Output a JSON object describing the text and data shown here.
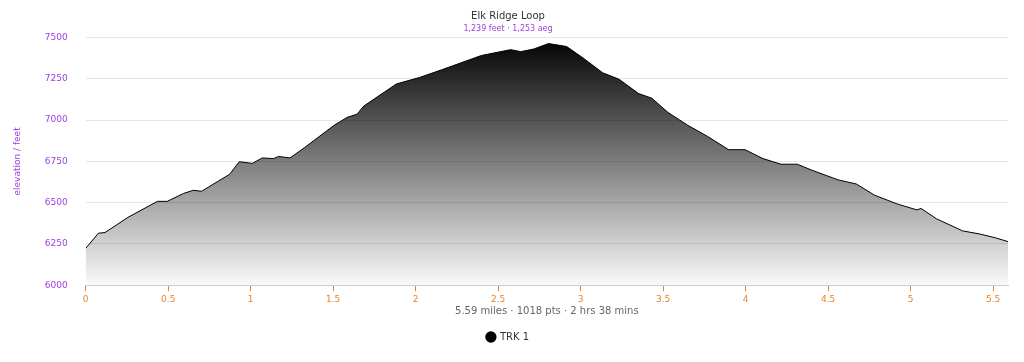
{
  "chart_data": {
    "type": "area",
    "title": "Elk Ridge Loop",
    "subtitle": "1,239 feet · 1,253 aeg",
    "ylabel": "elevation / feet",
    "annotations": [
      "5.59 miles · 1018 pts · 2 hrs 38 mins"
    ],
    "xlim": [
      0,
      5.59
    ],
    "xticks": [
      0,
      0.5,
      1,
      1.5,
      2,
      2.5,
      3,
      3.5,
      4,
      4.5,
      5,
      5.5
    ],
    "ylim": [
      6000,
      7500
    ],
    "yticks": [
      6000,
      6250,
      6500,
      6750,
      7000,
      7250,
      7500
    ],
    "grid": "y",
    "legend": "bottom",
    "marker": "none",
    "line_style": "solid",
    "series": [
      {
        "name": "TRK 1",
        "color": "#000000",
        "x": [
          0,
          0.077,
          0.117,
          0.256,
          0.435,
          0.494,
          0.593,
          0.653,
          0.702,
          0.871,
          0.931,
          1.01,
          1.07,
          1.139,
          1.169,
          1.238,
          1.327,
          1.506,
          1.585,
          1.645,
          1.685,
          1.883,
          2.022,
          2.161,
          2.399,
          2.577,
          2.637,
          2.716,
          2.805,
          2.915,
          3.014,
          3.133,
          3.232,
          3.351,
          3.431,
          3.53,
          3.649,
          3.768,
          3.897,
          3.996,
          4.105,
          4.214,
          4.313,
          4.403,
          4.561,
          4.671,
          4.78,
          4.919,
          5.038,
          5.063,
          5.157,
          5.315,
          5.415,
          5.514,
          5.59
        ],
        "values": [
          6223,
          6315,
          6319,
          6411,
          6508,
          6508,
          6556,
          6575,
          6569,
          6671,
          6748,
          6738,
          6771,
          6767,
          6780,
          6771,
          6834,
          6969,
          7017,
          7036,
          7085,
          7219,
          7258,
          7306,
          7392,
          7427,
          7415,
          7431,
          7464,
          7446,
          7377,
          7287,
          7248,
          7161,
          7133,
          7046,
          6969,
          6902,
          6821,
          6821,
          6767,
          6733,
          6733,
          6696,
          6638,
          6613,
          6546,
          6492,
          6456,
          6465,
          6402,
          6329,
          6311,
          6287,
          6264
        ]
      }
    ]
  }
}
